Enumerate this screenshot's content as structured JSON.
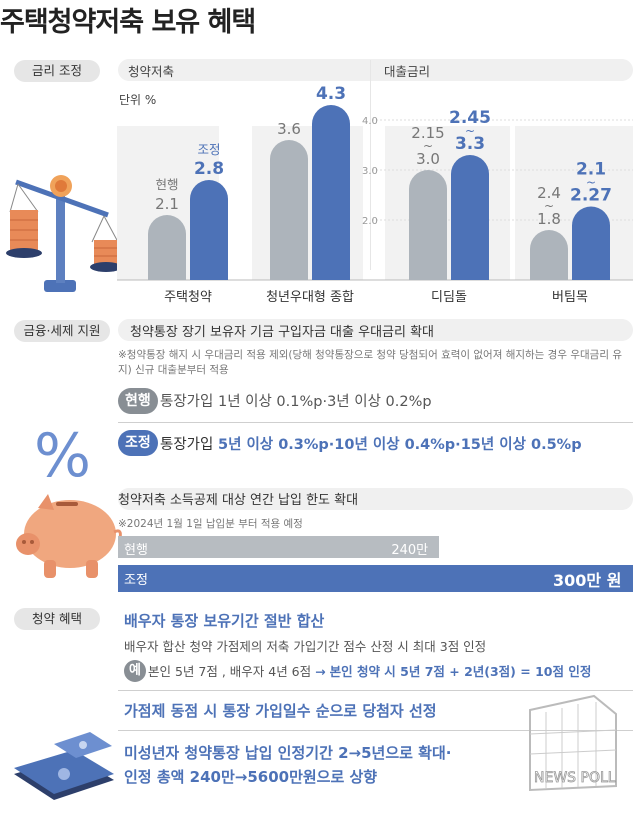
{
  "title": "주택청약저축 보유 혜택",
  "colors": {
    "current": "#adb4bb",
    "adjusted": "#4d72b7",
    "band": "#f2f2f2",
    "accent_text": "#4d72b7"
  },
  "section1": {
    "label": "금리 조정",
    "sub_left": "청약저축",
    "sub_right": "대출금리",
    "unit": "단위 %",
    "legend_current": "현행",
    "legend_adjusted": "조정"
  },
  "chart_data": {
    "type": "bar",
    "ylabel": "단위 %",
    "panels": [
      {
        "name": "청약저축",
        "categories": [
          "주택청약",
          "청년우대형 종합"
        ],
        "series": [
          {
            "name": "현행",
            "values": [
              2.1,
              3.6
            ],
            "labels": [
              "2.1",
              "3.6"
            ]
          },
          {
            "name": "조정",
            "values": [
              2.8,
              4.3
            ],
            "labels": [
              "2.8",
              "4.3"
            ]
          }
        ]
      },
      {
        "name": "대출금리",
        "categories": [
          "디딤돌",
          "버팀목"
        ],
        "yticks": [
          "4.0",
          "3.0",
          "2.0"
        ],
        "series": [
          {
            "name": "현행",
            "values": [
              3.0,
              1.8
            ],
            "labels": [
              "2.15 ~ 3.0",
              "2.4 ~ 1.8"
            ]
          },
          {
            "name": "조정",
            "values": [
              3.3,
              2.27
            ],
            "labels": [
              "2.45 ~ 3.3",
              "2.1 ~ 2.27"
            ]
          }
        ]
      }
    ]
  },
  "section2": {
    "label": "금융·세제 지원",
    "headline": "청약통장 장기 보유자 기금 구입자금 대출 우대금리 확대",
    "note": "※청약통장 해지 시 우대금리 적용 제외(당해 청약통장으로 청약 당첨되어 효력이 없어져 해지하는 경우 우대금리 유지) 신규 대출분부터 적용",
    "current_tag": "현행",
    "current_text": "통장가입 1년 이상 0.1%p·3년 이상 0.2%p",
    "adjusted_tag": "조정",
    "adjusted_prefix": "통장가입",
    "adjusted_text": "5년 이상 0.3%p·10년 이상 0.4%p·15년 이상 0.5%p",
    "deduction_headline": "청약저축 소득공제 대상 연간 납입 한도 확대",
    "deduction_note": "※2024년 1월 1일 납입분 부터 적용 예정",
    "deduction_current_label": "현행",
    "deduction_current_value": "240만",
    "deduction_adjusted_label": "조정",
    "deduction_adjusted_value": "300만 원",
    "deduction_chart": {
      "unit": "만 원",
      "current": 240,
      "adjusted": 300
    }
  },
  "section3": {
    "label": "청약 혜택",
    "item1_title": "배우자 통장 보유기간 절반 합산",
    "item1_desc": "배우자 합산 청약 가점제의 저축 가입기간 점수 산정 시 최대 3점  인정",
    "example_tag": "예",
    "example_text": "본인 5년 7점 , 배우자 4년 6점",
    "example_arrow": "→",
    "example_result": "본인 청약 시 5년 7점 + 2년(3점) = 10점 인정",
    "item2_title": "가점제 동점 시 통장 가입일수 순으로 당첨자 선정",
    "item3_line1": "미성년자 청약통장 납입 인정기간 2→5년으로 확대·",
    "item3_line2": "인정 총액 240만→5600만원으로 상향"
  },
  "watermark": "NEWS POLL"
}
